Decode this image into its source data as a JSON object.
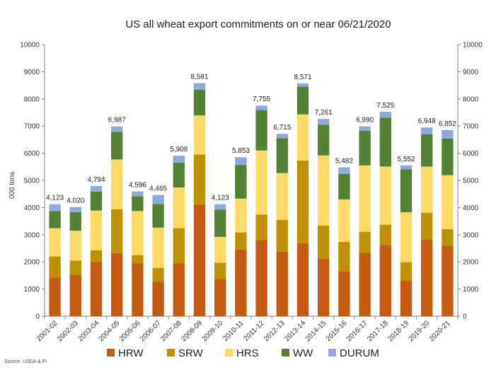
{
  "chart_data": {
    "type": "bar",
    "stacked": true,
    "title": "US all wheat export commitments on or near 06/21/2020",
    "ylabel": "000 tons",
    "ylim": [
      0,
      10000
    ],
    "yticks": [
      0,
      1000,
      2000,
      3000,
      4000,
      5000,
      6000,
      7000,
      8000,
      9000,
      10000
    ],
    "yticks_right": true,
    "grid": false,
    "legend_position": "bottom",
    "categories": [
      "2001-02",
      "2002-03",
      "2003-04",
      "2004-05",
      "2005-06",
      "2006-07",
      "2007-08",
      "2008-09",
      "2009-10",
      "2010-11",
      "2011-12",
      "2012-13",
      "2013-14",
      "2014-15",
      "2015-16",
      "2016-17",
      "2017-18",
      "2018-19",
      "2019-20",
      "2020-21"
    ],
    "totals": [
      4123,
      4020,
      4794,
      6987,
      4596,
      4465,
      5908,
      8581,
      4123,
      5853,
      7755,
      6715,
      8571,
      7261,
      5482,
      6990,
      7525,
      5552,
      6948,
      6852
    ],
    "total_labels": [
      "4,123",
      "4,020",
      "4,794",
      "6,987",
      "4,596",
      "4,465",
      "5,908",
      "8,581",
      "4,123",
      "5,853",
      "7,755",
      "6,715",
      "8,571",
      "7,261",
      "5,482",
      "6,990",
      "7,525",
      "5,552",
      "6,948",
      "6,852"
    ],
    "series": [
      {
        "name": "HRW",
        "color": "#C55A11",
        "values": [
          1420,
          1530,
          2000,
          2320,
          1950,
          1270,
          1950,
          4120,
          1370,
          2450,
          2800,
          2380,
          2690,
          2110,
          1660,
          2330,
          2620,
          1320,
          2830,
          2600
        ]
      },
      {
        "name": "SRW",
        "color": "#BF9000",
        "values": [
          780,
          520,
          430,
          1620,
          300,
          510,
          1290,
          1830,
          600,
          640,
          940,
          1170,
          3040,
          1230,
          1080,
          780,
          750,
          670,
          980,
          610
        ]
      },
      {
        "name": "HRS",
        "color": "#FFD966",
        "values": [
          1040,
          1100,
          1460,
          1830,
          1620,
          1480,
          1500,
          1440,
          950,
          1240,
          2360,
          1720,
          1700,
          2580,
          1560,
          2440,
          2140,
          1840,
          1700,
          1980
        ]
      },
      {
        "name": "WW",
        "color": "#548235",
        "values": [
          630,
          680,
          700,
          1020,
          550,
          870,
          910,
          950,
          1000,
          1240,
          1490,
          1280,
          1020,
          1130,
          940,
          1280,
          1800,
          1580,
          1190,
          1350
        ]
      },
      {
        "name": "DURUM",
        "color": "#8EA9DB",
        "values": [
          253,
          190,
          204,
          197,
          176,
          335,
          258,
          241,
          203,
          283,
          165,
          165,
          121,
          211,
          242,
          160,
          215,
          142,
          248,
          312
        ]
      }
    ],
    "source": "Source: USDA & FI"
  }
}
